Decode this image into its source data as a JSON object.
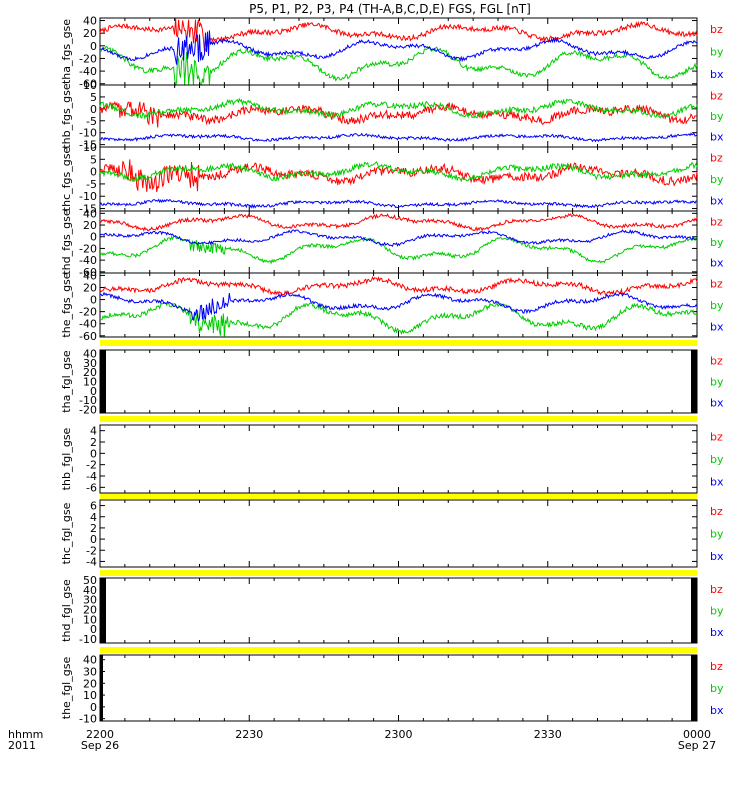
{
  "title": "P5, P1, P2, P3, P4 (TH-A,B,C,D,E) FGS, FGL [nT]",
  "component_colors": {
    "bz": "#ff0000",
    "by": "#00cc00",
    "bx": "#0000ff"
  },
  "legend_labels": [
    "bz",
    "by",
    "bx"
  ],
  "footer": {
    "format_label": "hhmm",
    "year_label": "2011"
  },
  "time_axis": {
    "range_hhmm": [
      "2200",
      "0000"
    ],
    "ticks": [
      {
        "label": "2200",
        "sublabel": "Sep 26",
        "minutes": 0
      },
      {
        "label": "2230",
        "sublabel": "",
        "minutes": 30
      },
      {
        "label": "2300",
        "sublabel": "",
        "minutes": 60
      },
      {
        "label": "2330",
        "sublabel": "",
        "minutes": 90
      },
      {
        "label": "0000",
        "sublabel": "Sep 27",
        "minutes": 120
      }
    ]
  },
  "chart_data": [
    {
      "type": "line",
      "ylabel": "tha_fgs_gse",
      "ylim": [
        -62,
        44
      ],
      "yticks": [
        40,
        20,
        0,
        -20,
        -40,
        -60
      ],
      "series": [
        {
          "name": "bz",
          "base": 22,
          "amp": 8,
          "noise": 4,
          "bursts": [
            {
              "start": 15,
              "end": 22,
              "amp": 22
            }
          ]
        },
        {
          "name": "by",
          "base": -28,
          "amp": 16,
          "noise": 4,
          "bursts": [
            {
              "start": 15,
              "end": 22,
              "amp": 28
            }
          ]
        },
        {
          "name": "bx",
          "base": -6,
          "amp": 10,
          "noise": 3,
          "bursts": [
            {
              "start": 15,
              "end": 22,
              "amp": 25
            }
          ]
        }
      ]
    },
    {
      "type": "line",
      "ylabel": "thb_fgs_gse",
      "ylim": [
        -16,
        10
      ],
      "yticks": [
        10,
        5,
        0,
        -5,
        -10,
        -15
      ],
      "series": [
        {
          "name": "bz",
          "base": -2,
          "amp": 2,
          "noise": 1.8,
          "bursts": [
            {
              "start": 4,
              "end": 12,
              "amp": 5
            }
          ]
        },
        {
          "name": "by",
          "base": 0,
          "amp": 2,
          "noise": 1.2,
          "bursts": []
        },
        {
          "name": "bx",
          "base": -12,
          "amp": 0.8,
          "noise": 0.6,
          "bursts": []
        }
      ]
    },
    {
      "type": "line",
      "ylabel": "thc_fgs_gse",
      "ylim": [
        -16,
        10
      ],
      "yticks": [
        10,
        5,
        0,
        -5,
        -10,
        -15
      ],
      "series": [
        {
          "name": "bz",
          "base": -1,
          "amp": 2,
          "noise": 1.8,
          "bursts": [
            {
              "start": 3,
              "end": 20,
              "amp": 5
            }
          ]
        },
        {
          "name": "by",
          "base": 0,
          "amp": 2,
          "noise": 1.2,
          "bursts": []
        },
        {
          "name": "bx",
          "base": -13,
          "amp": 0.8,
          "noise": 0.6,
          "bursts": []
        }
      ]
    },
    {
      "type": "line",
      "ylabel": "thd_fgs_gse",
      "ylim": [
        -62,
        44
      ],
      "yticks": [
        40,
        20,
        0,
        -20,
        -40,
        -60
      ],
      "series": [
        {
          "name": "bz",
          "base": 25,
          "amp": 8,
          "noise": 3,
          "bursts": []
        },
        {
          "name": "by",
          "base": -22,
          "amp": 14,
          "noise": 3,
          "bursts": [
            {
              "start": 18,
              "end": 25,
              "amp": 12
            }
          ]
        },
        {
          "name": "bx",
          "base": -2,
          "amp": 8,
          "noise": 2.5,
          "bursts": []
        }
      ]
    },
    {
      "type": "line",
      "ylabel": "the_fgs_gse",
      "ylim": [
        -62,
        44
      ],
      "yticks": [
        40,
        20,
        0,
        -20,
        -40,
        -60
      ],
      "series": [
        {
          "name": "bz",
          "base": 22,
          "amp": 8,
          "noise": 4,
          "bursts": []
        },
        {
          "name": "by",
          "base": -30,
          "amp": 16,
          "noise": 4,
          "bursts": [
            {
              "start": 18,
              "end": 26,
              "amp": 18
            }
          ]
        },
        {
          "name": "bx",
          "base": -5,
          "amp": 10,
          "noise": 3,
          "bursts": [
            {
              "start": 18,
              "end": 26,
              "amp": 14
            }
          ]
        }
      ]
    },
    {
      "type": "line",
      "ylabel": "tha_fgl_gse",
      "ylim": [
        -24,
        44
      ],
      "yticks": [
        40,
        30,
        20,
        10,
        0,
        -10,
        -20
      ],
      "series": []
    },
    {
      "type": "line",
      "ylabel": "thb_fgl_gse",
      "ylim": [
        -7,
        5
      ],
      "yticks": [
        4,
        2,
        0,
        -2,
        -4,
        -6
      ],
      "series": []
    },
    {
      "type": "line",
      "ylabel": "thc_fgl_gse",
      "ylim": [
        -5,
        7
      ],
      "yticks": [
        6,
        4,
        2,
        0,
        -2,
        -4
      ],
      "series": []
    },
    {
      "type": "line",
      "ylabel": "thd_fgl_gse",
      "ylim": [
        -14,
        52
      ],
      "yticks": [
        50,
        40,
        30,
        20,
        10,
        0,
        -10
      ],
      "series": []
    },
    {
      "type": "line",
      "ylabel": "the_fgl_gse",
      "ylim": [
        -12,
        44
      ],
      "yticks": [
        40,
        30,
        20,
        10,
        0,
        -10
      ],
      "series": []
    }
  ]
}
